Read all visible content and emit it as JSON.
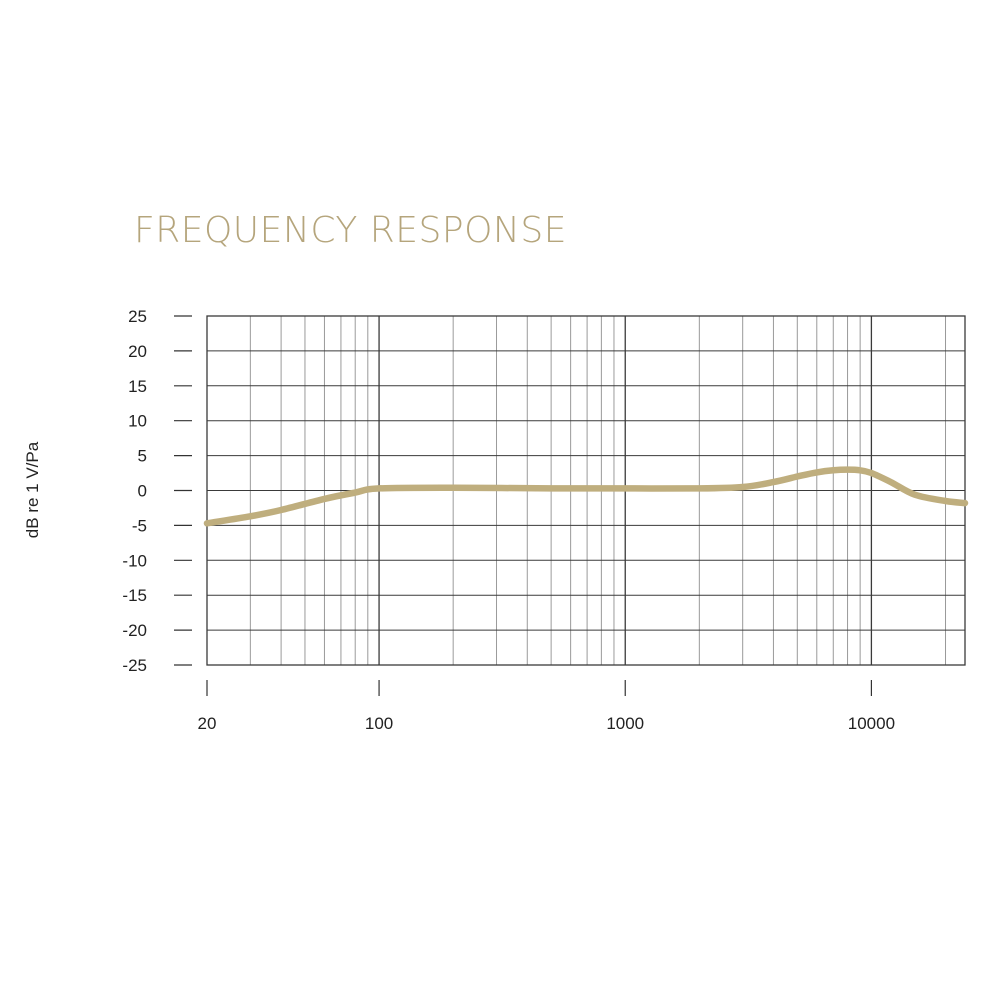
{
  "chart_data": {
    "type": "line",
    "title": "FREQUENCY RESPONSE",
    "xlabel": "",
    "ylabel": "dB re 1 V/Pa",
    "x_scale": "log",
    "xlim": [
      20,
      24000
    ],
    "ylim": [
      -25,
      25
    ],
    "x_ticks": [
      20,
      100,
      1000,
      10000
    ],
    "x_tick_labels": [
      "20",
      "100",
      "1000",
      "10000"
    ],
    "y_ticks": [
      25,
      20,
      15,
      10,
      5,
      0,
      -5,
      -10,
      -15,
      -20,
      -25
    ],
    "y_tick_labels": [
      "25",
      "20",
      "15",
      "10",
      "5",
      "0",
      "-5",
      "-10",
      "-15",
      "-20",
      "-25"
    ],
    "grid": true,
    "line_color": "#bfae7e",
    "title_color": "#b5a57c",
    "series": [
      {
        "x": [
          20,
          30,
          40,
          60,
          80,
          100,
          200,
          500,
          1000,
          2000,
          3000,
          4000,
          5000,
          6000,
          7000,
          8000,
          9000,
          10000,
          12000,
          15000,
          20000,
          24000
        ],
        "values": [
          -4.7,
          -3.7,
          -2.8,
          -1.2,
          -0.3,
          0.3,
          0.4,
          0.3,
          0.3,
          0.3,
          0.5,
          1.2,
          2.0,
          2.6,
          2.9,
          3.0,
          2.9,
          2.5,
          1.2,
          -0.6,
          -1.5,
          -1.8
        ]
      }
    ]
  }
}
